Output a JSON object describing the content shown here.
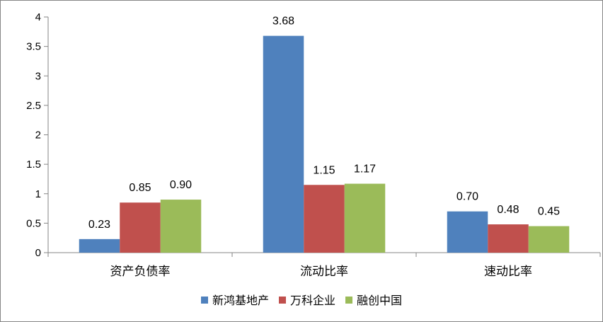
{
  "chart_data": {
    "type": "bar",
    "categories": [
      "资产负债率",
      "流动比率",
      "速动比率"
    ],
    "series": [
      {
        "name": "新鸿基地产",
        "color": "#4F81BD",
        "values": [
          0.23,
          3.68,
          0.7
        ],
        "labels": [
          "0.23",
          "3.68",
          "0.70"
        ]
      },
      {
        "name": "万科企业",
        "color": "#C0504D",
        "values": [
          0.85,
          1.15,
          0.48
        ],
        "labels": [
          "0.85",
          "1.15",
          "0.48"
        ]
      },
      {
        "name": "融创中国",
        "color": "#9BBB59",
        "values": [
          0.9,
          1.17,
          0.45
        ],
        "labels": [
          "0.90",
          "1.17",
          "0.45"
        ]
      }
    ],
    "ylim": [
      0,
      4
    ],
    "yticks": [
      "0",
      "0.5",
      "1",
      "1.5",
      "2",
      "2.5",
      "3",
      "3.5",
      "4"
    ],
    "grid": false,
    "legend_position": "bottom"
  }
}
